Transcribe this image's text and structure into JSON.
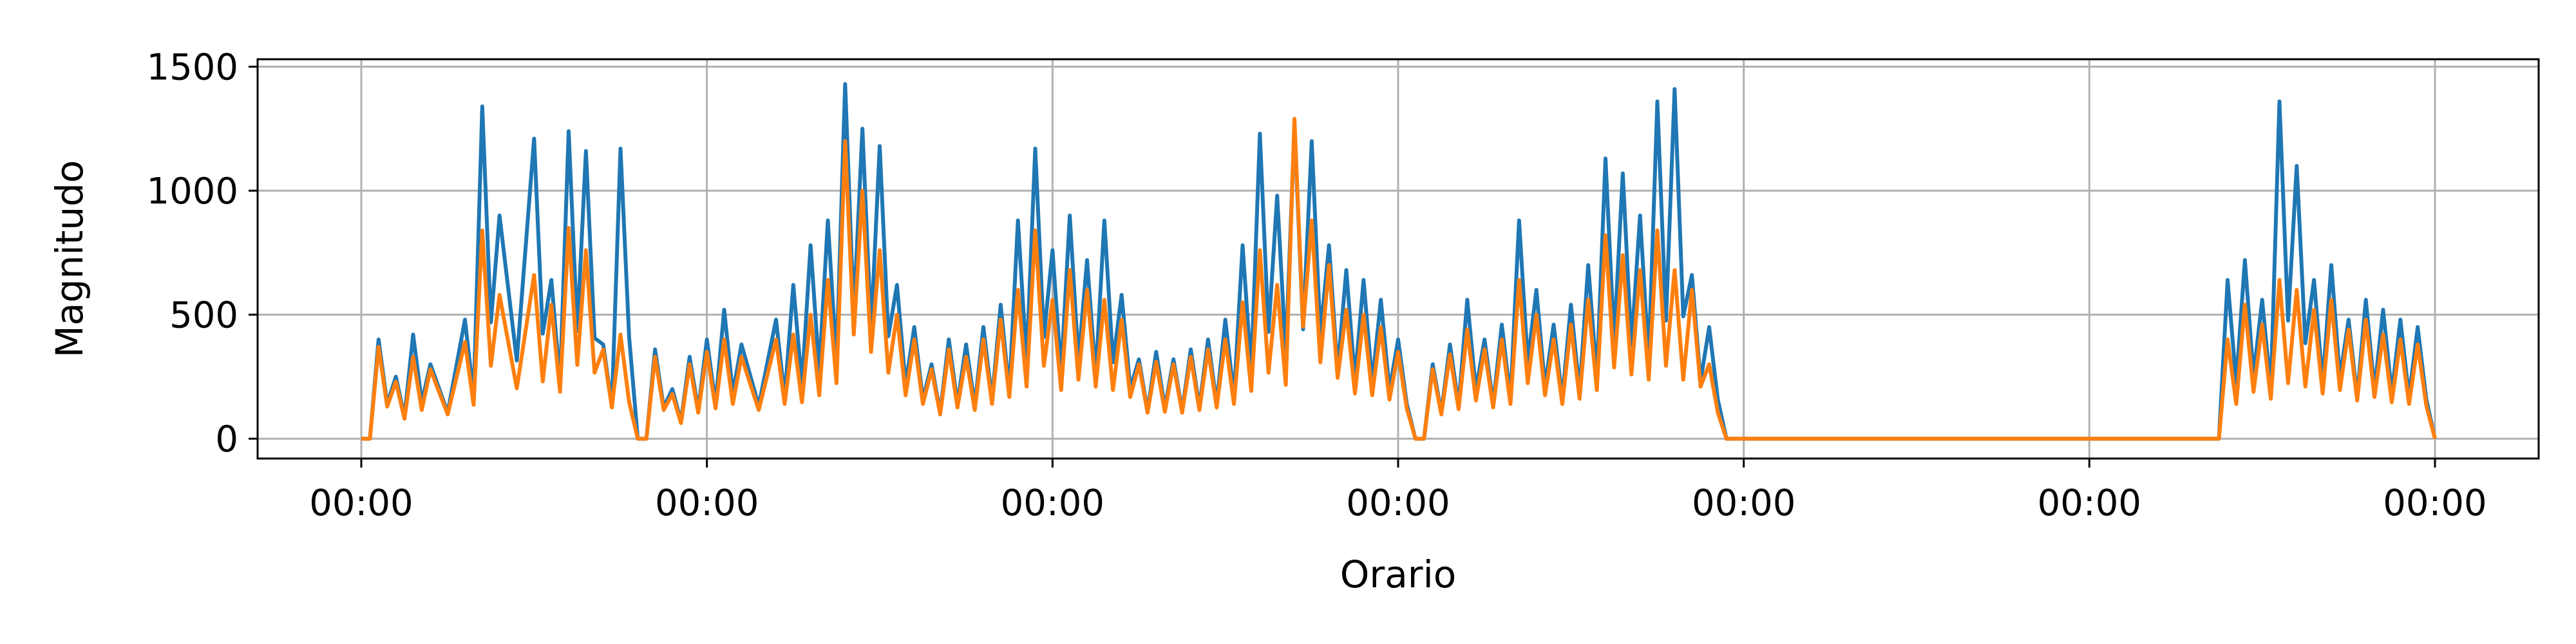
{
  "chart_data": {
    "type": "line",
    "title": "",
    "xlabel": "Orario",
    "ylabel": "Magnitudo",
    "grid": true,
    "legend": "none",
    "x_tick_labels": [
      "00:00",
      "00:00",
      "00:00",
      "00:00",
      "00:00",
      "00:00",
      "00:00"
    ],
    "xlim_days": [
      -0.3,
      6.3
    ],
    "ylim": [
      -80,
      1530
    ],
    "y_ticks": [
      0,
      500,
      1000,
      1500
    ],
    "x_unit": "days",
    "series": [
      {
        "color": "#1f77b4",
        "x": [
          0.0,
          0.05,
          0.1,
          0.15,
          0.2,
          0.3,
          0.35,
          0.4,
          0.5,
          0.55,
          0.6,
          0.65,
          0.7,
          0.75,
          0.8,
          0.85,
          0.9,
          0.95,
          1.0,
          1.05,
          1.1,
          1.2,
          1.25,
          1.3,
          1.35,
          1.4,
          1.45,
          1.5,
          1.55,
          1.6,
          1.65,
          1.7,
          1.75,
          1.8,
          1.85,
          1.9,
          1.95,
          2.0,
          2.05,
          2.1,
          2.15,
          2.2,
          2.25,
          2.3,
          2.35,
          2.4,
          2.45,
          2.5,
          2.55,
          2.6,
          2.65,
          2.7,
          2.75,
          2.8,
          2.85,
          2.9,
          2.95,
          3.0,
          3.05,
          3.1,
          3.15,
          3.2,
          3.25,
          3.3,
          3.35,
          3.4,
          3.45,
          3.5,
          3.55,
          3.6,
          3.65,
          3.7,
          3.75,
          3.8,
          3.85,
          3.9,
          3.95,
          4.0,
          4.05,
          4.1,
          4.15,
          4.2,
          4.25,
          4.3,
          4.35,
          4.4,
          4.45,
          4.5,
          4.55,
          4.6,
          4.65,
          4.7,
          4.75,
          4.8,
          4.85,
          4.9,
          4.92,
          5.0,
          5.2,
          5.33,
          5.35,
          5.4,
          5.45,
          5.5,
          5.55,
          5.6,
          5.65,
          5.7,
          5.75,
          5.8,
          5.85,
          5.9,
          5.95,
          6.0
        ],
        "y": [
          0,
          400,
          250,
          420,
          300,
          480,
          1340,
          900,
          1210,
          640,
          1240,
          1160,
          380,
          1170,
          0,
          360,
          200,
          330,
          400,
          520,
          380,
          480,
          620,
          780,
          880,
          1430,
          1250,
          1180,
          620,
          450,
          300,
          400,
          380,
          450,
          540,
          880,
          1170,
          760,
          900,
          720,
          880,
          580,
          320,
          350,
          320,
          360,
          400,
          480,
          780,
          1230,
          980,
          1260,
          1200,
          780,
          680,
          640,
          560,
          400,
          0,
          300,
          380,
          560,
          400,
          460,
          880,
          600,
          460,
          540,
          700,
          1130,
          1070,
          900,
          1360,
          1410,
          660,
          450,
          0,
          0,
          0,
          0,
          0,
          0,
          0,
          0,
          0,
          0,
          0,
          0,
          0,
          0,
          0,
          0,
          0,
          0,
          0,
          0,
          0,
          0,
          0,
          0,
          0,
          640,
          720,
          560,
          1360,
          1100,
          640,
          700,
          480,
          560,
          520,
          480,
          450,
          0
        ]
      },
      {
        "color": "#ff7f0e",
        "x": [
          0.0,
          0.05,
          0.1,
          0.15,
          0.2,
          0.3,
          0.35,
          0.4,
          0.5,
          0.55,
          0.6,
          0.65,
          0.7,
          0.75,
          0.8,
          0.85,
          0.9,
          0.95,
          1.0,
          1.05,
          1.1,
          1.2,
          1.25,
          1.3,
          1.35,
          1.4,
          1.45,
          1.5,
          1.55,
          1.6,
          1.65,
          1.7,
          1.75,
          1.8,
          1.85,
          1.9,
          1.95,
          2.0,
          2.05,
          2.1,
          2.15,
          2.2,
          2.25,
          2.3,
          2.35,
          2.4,
          2.45,
          2.5,
          2.55,
          2.6,
          2.65,
          2.7,
          2.75,
          2.8,
          2.85,
          2.9,
          2.95,
          3.0,
          3.05,
          3.1,
          3.15,
          3.2,
          3.25,
          3.3,
          3.35,
          3.4,
          3.45,
          3.5,
          3.55,
          3.6,
          3.65,
          3.7,
          3.75,
          3.8,
          3.85,
          3.9,
          3.95,
          4.0,
          4.05,
          4.1,
          4.15,
          4.2,
          4.25,
          4.3,
          4.35,
          4.4,
          4.45,
          4.5,
          4.55,
          4.6,
          4.65,
          4.7,
          4.75,
          4.8,
          4.85,
          4.9,
          4.92,
          5.0,
          5.2,
          5.33,
          5.35,
          5.4,
          5.45,
          5.5,
          5.55,
          5.6,
          5.65,
          5.7,
          5.75,
          5.8,
          5.85,
          5.9,
          5.95,
          6.0
        ],
        "y": [
          0,
          370,
          230,
          330,
          280,
          390,
          840,
          580,
          660,
          540,
          850,
          760,
          360,
          420,
          0,
          330,
          180,
          300,
          350,
          400,
          330,
          400,
          420,
          500,
          640,
          1200,
          1000,
          760,
          500,
          400,
          280,
          360,
          330,
          400,
          480,
          600,
          840,
          560,
          680,
          600,
          560,
          480,
          300,
          310,
          300,
          330,
          360,
          400,
          550,
          760,
          620,
          1290,
          880,
          700,
          520,
          500,
          450,
          350,
          0,
          280,
          340,
          440,
          360,
          400,
          640,
          500,
          400,
          460,
          560,
          820,
          740,
          680,
          840,
          680,
          600,
          300,
          0,
          0,
          0,
          0,
          0,
          0,
          0,
          0,
          0,
          0,
          0,
          0,
          0,
          0,
          0,
          0,
          0,
          0,
          0,
          0,
          0,
          0,
          0,
          0,
          0,
          400,
          540,
          460,
          640,
          600,
          520,
          560,
          440,
          480,
          420,
          400,
          380,
          0
        ]
      }
    ]
  }
}
